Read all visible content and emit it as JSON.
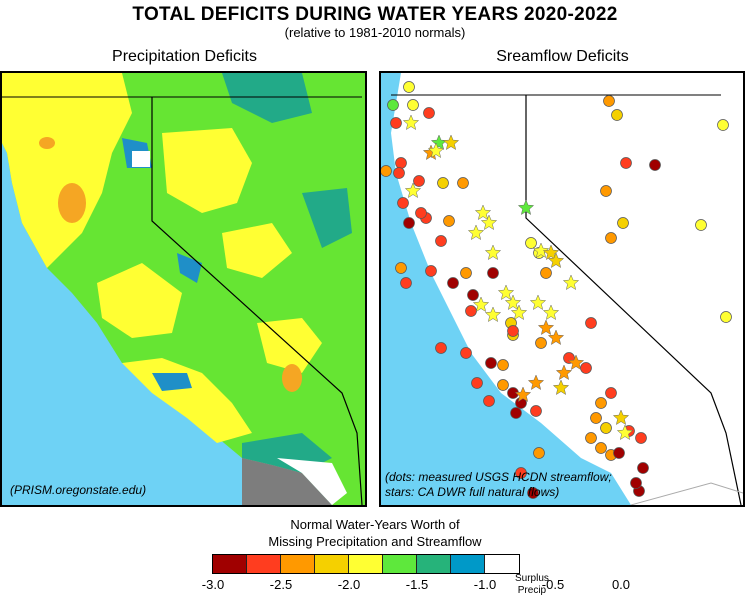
{
  "title": "TOTAL DEFICITS DURING WATER YEARS 2020-2022",
  "subtitle": "(relative to 1981-2010 normals)",
  "left_panel": {
    "title": "Precipitation Deficits",
    "note": "(PRISM.oregonstate.edu)"
  },
  "right_panel": {
    "title": "Sreamflow Deficits",
    "note_line1": "(dots: measured USGS HCDN streamflow;",
    "note_line2": "stars: CA DWR full natural flows)"
  },
  "legend": {
    "title_line1": "Normal Water-Years Worth of",
    "title_line2": "Missing Precipitation and Streamflow",
    "ticks": [
      "-3.0",
      "-2.5",
      "-2.0",
      "-1.5",
      "-1.0",
      "-0.5",
      "0.0"
    ],
    "surplus_line1": "Surplus",
    "surplus_line2": "Precip",
    "colors": [
      "#a00000",
      "#ff3d1f",
      "#ff9900",
      "#f5d000",
      "#ffff33",
      "#5ee83c",
      "#26b37a",
      "#0099c8",
      "#ffffff"
    ]
  },
  "colors": {
    "ocean": "#6ed2f5",
    "land_white": "#ffffff",
    "land_gray": "#7d7d7d",
    "deficit_yellow": "#ffff33",
    "deficit_green": "#66e533",
    "deficit_teal": "#22aa88",
    "deficit_blue": "#1f8fc8",
    "deficit_orange": "#ff9900"
  }
}
